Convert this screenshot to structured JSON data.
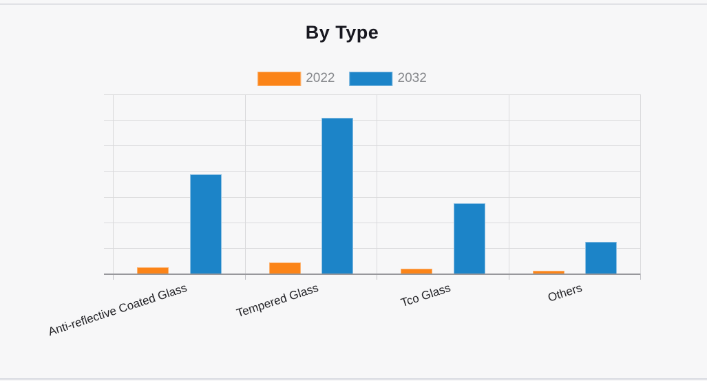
{
  "page": {
    "background": "#f7f7f8",
    "top_border_color": "#e0e1e5",
    "bottom_border_color": "#d8dae1"
  },
  "chart_data": {
    "type": "bar",
    "title": "By Type",
    "categories": [
      "Anti-reflective Coated Glass",
      "Tempered Glass",
      "Tco Glass",
      "Others"
    ],
    "series": [
      {
        "name": "2022",
        "color": "#fb8418",
        "border_color": "#fcb26f",
        "values": [
          0.24,
          0.42,
          0.18,
          0.11
        ]
      },
      {
        "name": "2032",
        "color": "#1c84c8",
        "border_color": "#8fc1e3",
        "values": [
          3.88,
          6.08,
          2.74,
          1.25
        ]
      }
    ],
    "ylim": [
      0,
      7
    ],
    "units": "gridline-units (y-axis shows no numeric labels)",
    "grid": true,
    "horizontal_gridlines": 7,
    "vertical_gridlines": 5,
    "legend_position": "top-center",
    "xlabel": "",
    "ylabel": ""
  }
}
